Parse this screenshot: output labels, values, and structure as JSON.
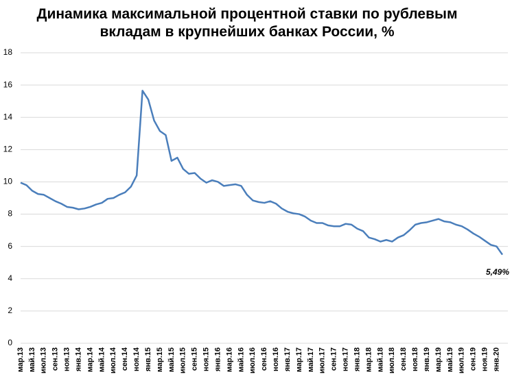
{
  "chart_data": {
    "type": "line",
    "title": "Динамика максимальной процентной ставки по рублевым вкладам в крупнейших банках России, %",
    "categories": [
      "мар.13",
      null,
      "май.13",
      null,
      "июл.13",
      null,
      "сен.13",
      null,
      "ноя.13",
      null,
      "янв.14",
      null,
      "мар.14",
      null,
      "май.14",
      null,
      "июл.14",
      null,
      "сен.14",
      null,
      "ноя.14",
      null,
      "янв.15",
      null,
      "мар.15",
      null,
      "май.15",
      null,
      "июл.15",
      null,
      "сен.15",
      null,
      "ноя.15",
      null,
      "янв.16",
      null,
      "мар.16",
      null,
      "май.16",
      null,
      "июл.16",
      null,
      "сен.16",
      null,
      "ноя.16",
      null,
      "янв.17",
      null,
      "мар.17",
      null,
      "май.17",
      null,
      "июл.17",
      null,
      "сен.17",
      null,
      "ноя.17",
      null,
      "янв.18",
      null,
      "мар.18",
      null,
      "май.18",
      null,
      "июл.18",
      null,
      "сен.18",
      null,
      "ноя.18",
      null,
      "янв.19",
      null,
      "мар.19",
      null,
      "май.19",
      null,
      "июл.19",
      null,
      "сен.19",
      null,
      "ноя.19",
      null,
      "янв.20",
      null
    ],
    "values": [
      9.95,
      9.8,
      9.45,
      9.25,
      9.2,
      9.0,
      8.8,
      8.65,
      8.45,
      8.4,
      8.3,
      8.35,
      8.45,
      8.6,
      8.7,
      8.95,
      9.0,
      9.2,
      9.35,
      9.7,
      10.4,
      15.65,
      15.1,
      13.8,
      13.15,
      12.9,
      11.3,
      11.5,
      10.8,
      10.5,
      10.55,
      10.2,
      9.95,
      10.1,
      10.0,
      9.75,
      9.8,
      9.85,
      9.75,
      9.2,
      8.85,
      8.75,
      8.7,
      8.8,
      8.65,
      8.35,
      8.15,
      8.05,
      8.0,
      7.85,
      7.6,
      7.45,
      7.45,
      7.3,
      7.25,
      7.25,
      7.4,
      7.35,
      7.1,
      6.95,
      6.55,
      6.45,
      6.3,
      6.4,
      6.3,
      6.55,
      6.7,
      7.0,
      7.35,
      7.45,
      7.5,
      7.6,
      7.7,
      7.55,
      7.5,
      7.35,
      7.25,
      7.05,
      6.8,
      6.6,
      6.35,
      6.1,
      6.0,
      5.49
    ],
    "value_labels": [
      null,
      null,
      null,
      null,
      null,
      null,
      null,
      null,
      null,
      null,
      null,
      null,
      null,
      null,
      null,
      null,
      null,
      null,
      null,
      null,
      null,
      null,
      null,
      null,
      null,
      null,
      null,
      null,
      null,
      null,
      null,
      null,
      null,
      null,
      null,
      null,
      null,
      null,
      null,
      null,
      null,
      null,
      null,
      null,
      null,
      null,
      null,
      null,
      null,
      null,
      null,
      null,
      null,
      null,
      null,
      null,
      null,
      null,
      null,
      null,
      null,
      null,
      null,
      null,
      null,
      null,
      null,
      null,
      null,
      null,
      null,
      null,
      null,
      null,
      null,
      null,
      null,
      null,
      null,
      null,
      null,
      null,
      null,
      "5,49%"
    ],
    "color": "#4a7ebb",
    "ylim": [
      0,
      18
    ],
    "yticks": [
      0,
      2,
      4,
      6,
      8,
      10,
      12,
      14,
      16,
      18
    ],
    "grid": true
  }
}
